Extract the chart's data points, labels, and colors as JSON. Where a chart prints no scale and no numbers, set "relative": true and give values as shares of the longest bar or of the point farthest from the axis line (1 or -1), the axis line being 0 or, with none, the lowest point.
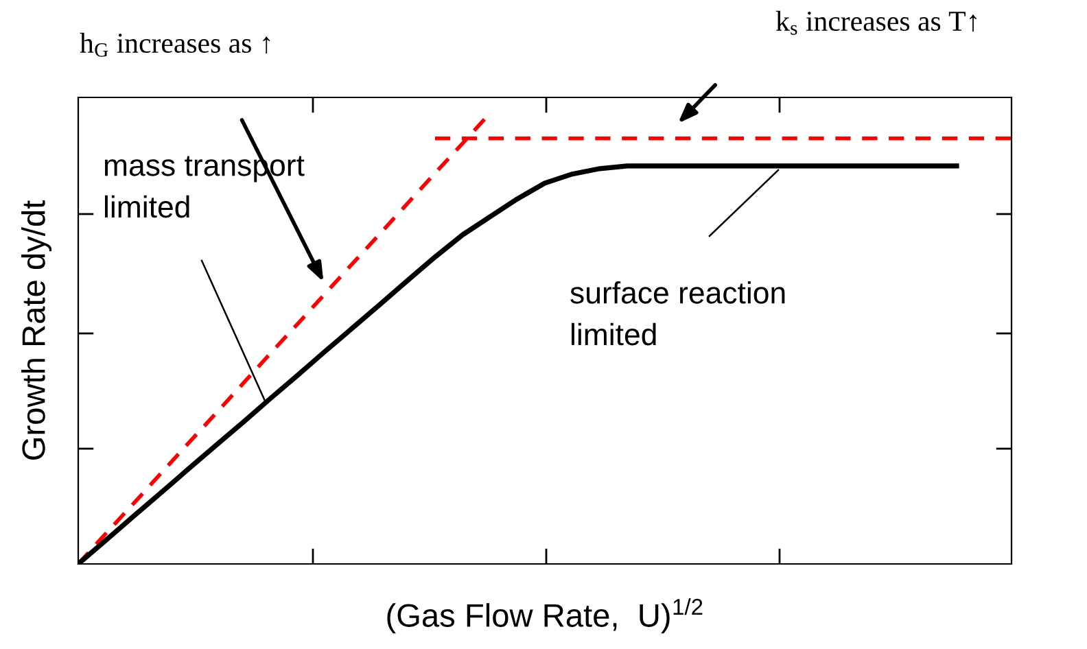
{
  "chart_data": {
    "type": "line",
    "relative": true,
    "xlabel": "(Gas Flow Rate,  U)$^{1/2}$",
    "ylabel": "Growth Rate dy/dt",
    "categories": [
      null,
      null,
      null,
      null,
      null,
      null,
      null,
      null,
      null,
      null,
      null,
      null,
      null,
      null,
      null,
      null,
      null,
      null,
      null,
      null,
      null,
      null,
      null,
      null,
      null,
      null,
      null,
      null,
      null,
      null,
      null,
      null,
      null,
      null,
      null
    ],
    "series": [
      {
        "color": "#ff0000",
        "line_style": "dashed",
        "values": [
          0,
          0.067,
          0.133,
          0.2,
          0.267,
          0.333,
          0.4,
          0.467,
          0.533,
          0.6,
          0.667,
          0.733,
          0.8,
          0.867,
          0.933,
          1.0,
          null,
          null,
          null,
          null,
          null,
          null,
          null,
          null,
          null,
          null,
          null,
          null,
          null,
          null,
          null,
          null,
          null,
          null,
          null
        ]
      },
      {
        "color": "#ff0000",
        "line_style": "dashed",
        "values": [
          null,
          null,
          null,
          null,
          null,
          null,
          null,
          null,
          null,
          null,
          null,
          null,
          null,
          0.944,
          0.944,
          0.944,
          0.944,
          0.944,
          0.944,
          0.944,
          0.944,
          0.944,
          0.944,
          0.944,
          0.944,
          0.944,
          0.944,
          0.944,
          0.944,
          0.944,
          0.944,
          0.944,
          0.944,
          0.944,
          0.944
        ]
      },
      {
        "color": "#000000",
        "line_style": "solid",
        "values": [
          0,
          0.052,
          0.105,
          0.157,
          0.21,
          0.262,
          0.314,
          0.367,
          0.419,
          0.472,
          0.524,
          0.576,
          0.629,
          0.681,
          0.73,
          0.77,
          0.81,
          0.845,
          0.865,
          0.877,
          0.883,
          0.883,
          0.883,
          0.883,
          0.883,
          0.883,
          0.883,
          0.883,
          0.883,
          0.883,
          0.883,
          0.883,
          0.883,
          null,
          null
        ]
      }
    ],
    "annotations": [
      "h$_{G}$ increases as ↑",
      "k$_{s}$ increases as T↑",
      "mass transport\nlimited",
      "surface reaction\nlimited"
    ],
    "grid": false,
    "legend": false,
    "tick_labels": false
  }
}
